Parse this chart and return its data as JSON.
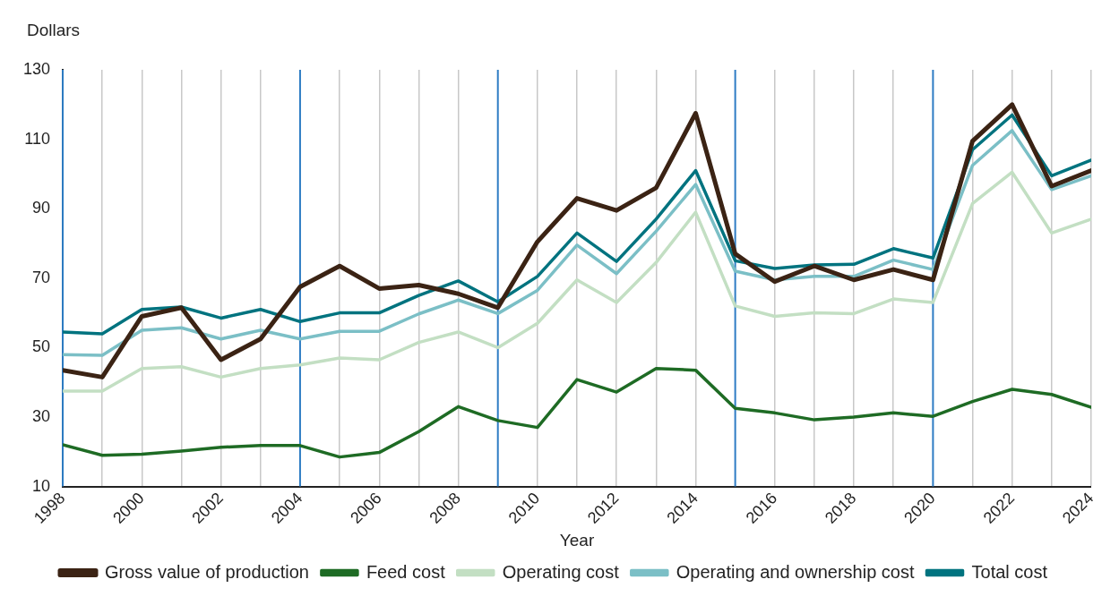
{
  "chart_data": {
    "type": "line",
    "xlabel": "Year",
    "ylabel": "Dollars",
    "x": [
      1998,
      1999,
      2000,
      2001,
      2002,
      2003,
      2004,
      2005,
      2006,
      2007,
      2008,
      2009,
      2010,
      2011,
      2012,
      2013,
      2014,
      2015,
      2016,
      2017,
      2018,
      2019,
      2020,
      2021,
      2022,
      2023,
      2024
    ],
    "xlim": [
      1998,
      2024
    ],
    "xticks": [
      1998,
      {
        "value": 1999,
        "label": null
      },
      2000,
      {
        "value": 2001,
        "label": null
      },
      2002,
      {
        "value": 2003,
        "label": null
      },
      2004,
      {
        "value": 2005,
        "label": null
      },
      2006,
      {
        "value": 2007,
        "label": null
      },
      2008,
      {
        "value": 2009,
        "label": null
      },
      2010,
      {
        "value": 2011,
        "label": null
      },
      2012,
      {
        "value": 2013,
        "label": null
      },
      2014,
      {
        "value": 2015,
        "label": null
      },
      2016,
      {
        "value": 2017,
        "label": null
      },
      2018,
      {
        "value": 2019,
        "label": null
      },
      2020,
      {
        "value": 2021,
        "label": null
      },
      2022,
      {
        "value": 2023,
        "label": null
      },
      2024
    ],
    "ylim": [
      10,
      130
    ],
    "yticks": [
      10,
      30,
      50,
      70,
      90,
      110,
      130
    ],
    "grid": "x",
    "legend": "bottom",
    "marker": "none",
    "line_style": "solid",
    "ref_lines": [
      {
        "axis": "x",
        "value": 1998,
        "color": "#2e7cc4"
      },
      {
        "axis": "x",
        "value": 2004,
        "color": "#2e7cc4"
      },
      {
        "axis": "x",
        "value": 2009,
        "color": "#2e7cc4"
      },
      {
        "axis": "x",
        "value": 2015,
        "color": "#2e7cc4"
      },
      {
        "axis": "x",
        "value": 2020,
        "color": "#2e7cc4"
      }
    ],
    "series": [
      {
        "name": "Gross value of production",
        "color": "#3b2314",
        "values": [
          43.5,
          41.5,
          59,
          61.5,
          46.5,
          52.5,
          67.5,
          73.5,
          67,
          68,
          65.5,
          61.5,
          80.5,
          93,
          89.5,
          96,
          117.5,
          77,
          69,
          73.5,
          69.5,
          72.5,
          69.5,
          109.5,
          120,
          96.5,
          101
        ]
      },
      {
        "name": "Feed cost",
        "color": "#1e6b24",
        "values": [
          22,
          19,
          19.3,
          20.2,
          21.3,
          21.8,
          21.8,
          18.5,
          19.8,
          25.8,
          33,
          29,
          27,
          40.8,
          37.2,
          44,
          43.5,
          32.5,
          31.2,
          29.2,
          30,
          31.2,
          30.2,
          34.5,
          38,
          36.5,
          32.8
        ]
      },
      {
        "name": "Operating cost",
        "color": "#c3dfc3",
        "values": [
          37.5,
          37.5,
          44,
          44.5,
          41.5,
          44,
          45,
          47,
          46.5,
          51.5,
          54.5,
          50,
          57,
          69.5,
          63,
          74.5,
          89,
          62,
          59,
          60,
          59.8,
          64,
          63,
          91.5,
          100.5,
          83,
          87
        ]
      },
      {
        "name": "Operating and ownership cost",
        "color": "#7bbfc6",
        "values": [
          48,
          47.8,
          55,
          55.7,
          52.5,
          55,
          52.5,
          54.7,
          54.7,
          59.7,
          63.7,
          59.8,
          66.5,
          79.5,
          71.3,
          83.5,
          97,
          72,
          69.5,
          70.5,
          70.5,
          75.2,
          72.5,
          102.5,
          112.5,
          95.5,
          99.5
        ]
      },
      {
        "name": "Total cost",
        "color": "#00737f",
        "values": [
          54.5,
          54,
          61,
          61.7,
          58.5,
          61,
          57.5,
          60,
          60,
          65,
          69.2,
          63.2,
          70.5,
          83,
          74.8,
          87,
          101,
          75,
          72.8,
          73.8,
          74,
          78.5,
          75.8,
          107,
          117,
          99.5,
          104
        ]
      }
    ]
  }
}
